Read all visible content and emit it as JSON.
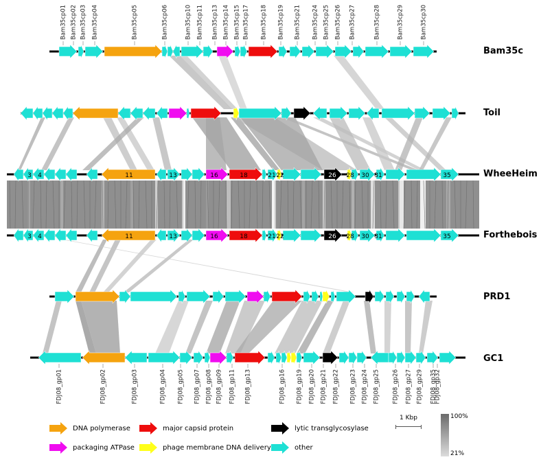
{
  "tracks": [
    {
      "id": "bam35c",
      "label": "Bam35c"
    },
    {
      "id": "toil",
      "label": "Toil"
    },
    {
      "id": "wheeheim",
      "label": "WheeHeim"
    },
    {
      "id": "forthebois",
      "label": "Forthebois"
    },
    {
      "id": "prd1",
      "label": "PRD1"
    },
    {
      "id": "gc1",
      "label": "GC1"
    }
  ],
  "top_gene_labels": [
    "Bam35cp01",
    "Bam35cp02",
    "Bam35cp03",
    "Bam35cp04",
    "Bam35cp05",
    "Bam35cp06",
    "Bam35cp10",
    "Bam35cp11",
    "Bam35cp13",
    "Bam35cp14",
    "Bam35cp15",
    "Bam35cp17",
    "Bam35cp18",
    "Bam35cp19",
    "Bam35cp21",
    "Bam35cp24",
    "Bam35cp25",
    "Bam35cp26",
    "Bam35cp27",
    "Bam35cp28",
    "Bam35cp29",
    "Bam35cp30"
  ],
  "bottom_gene_labels": [
    "FDJ08_gp01",
    "FDJ08_gp02",
    "FDJ08_gp03",
    "FDJ08_gp04",
    "FDJ08_gp05",
    "FDJ08_gp07",
    "FDJ08_gp08",
    "FDJ08_gp09",
    "FDJ08_gp11",
    "FDJ08_gp13",
    "FDJ08_gp16",
    "FDJ08_gp19",
    "FDJ08_gp20",
    "FDJ08_gp21",
    "FDJ08_gp22",
    "FDJ08_gp23",
    "FDJ08_gp24",
    "FDJ08_gp25",
    "FDJ08_gp26",
    "FDJ08_gp27",
    "FDJ08_gp29",
    "FDJ08_gp32",
    "FDJ08_gp35"
  ],
  "gene_numbers": [
    "3",
    "4",
    "11",
    "13",
    "16",
    "18",
    "21",
    "22",
    "26",
    "28",
    "30",
    "31",
    "35"
  ],
  "legend": [
    {
      "label": "DNA polymerase",
      "color": "#f5a30f"
    },
    {
      "label": "major capsid protein",
      "color": "#ee0d0d"
    },
    {
      "label": "lytic transglycosylase",
      "color": "#000000"
    },
    {
      "label": "packaging ATPase",
      "color": "#f00cf0"
    },
    {
      "label": "phage membrane DNA delivery",
      "color": "#ffff1a"
    },
    {
      "label": "other",
      "color": "#1ee0d4"
    }
  ],
  "scale": {
    "label": "1 Kbp"
  },
  "identity": {
    "max": "100%",
    "min": "21%"
  }
}
